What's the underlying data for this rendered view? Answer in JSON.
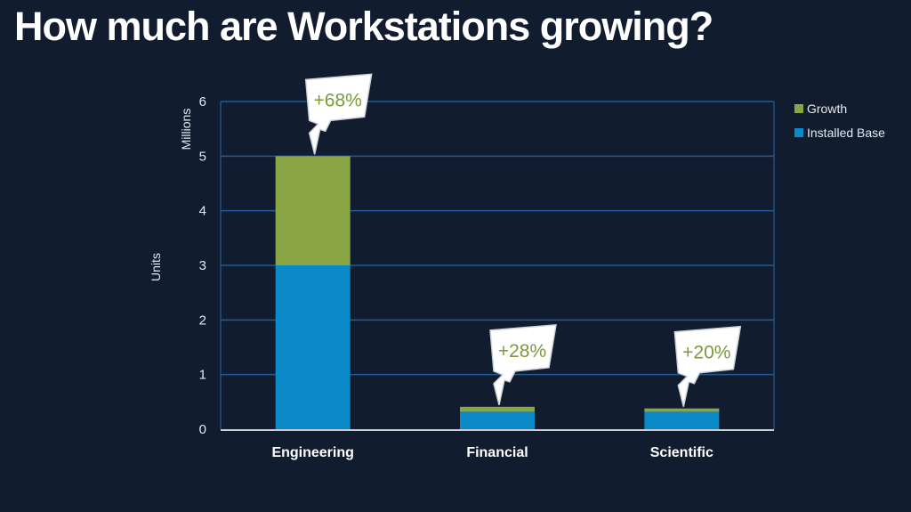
{
  "title": "How much are Workstations growing?",
  "chart_data": {
    "type": "bar",
    "stacked": true,
    "title": "How much are Workstations growing?",
    "xlabel": "",
    "ylabel": "Units",
    "ylabel_unit": "Millions",
    "ylim": [
      0,
      6
    ],
    "yticks": [
      "0",
      "1",
      "2",
      "3",
      "4",
      "5",
      "6"
    ],
    "grid": true,
    "legend_position": "right",
    "categories": [
      "Engineering",
      "Financial",
      "Scientific"
    ],
    "series": [
      {
        "name": "Installed Base",
        "color": "#0a8ac8",
        "values": [
          3.0,
          0.32,
          0.32
        ]
      },
      {
        "name": "Growth",
        "color": "#8aa644",
        "values": [
          2.0,
          0.09,
          0.06
        ]
      }
    ],
    "legend": [
      "Growth",
      "Installed Base"
    ],
    "annotations": [
      "+68%",
      "+28%",
      "+20%"
    ]
  }
}
